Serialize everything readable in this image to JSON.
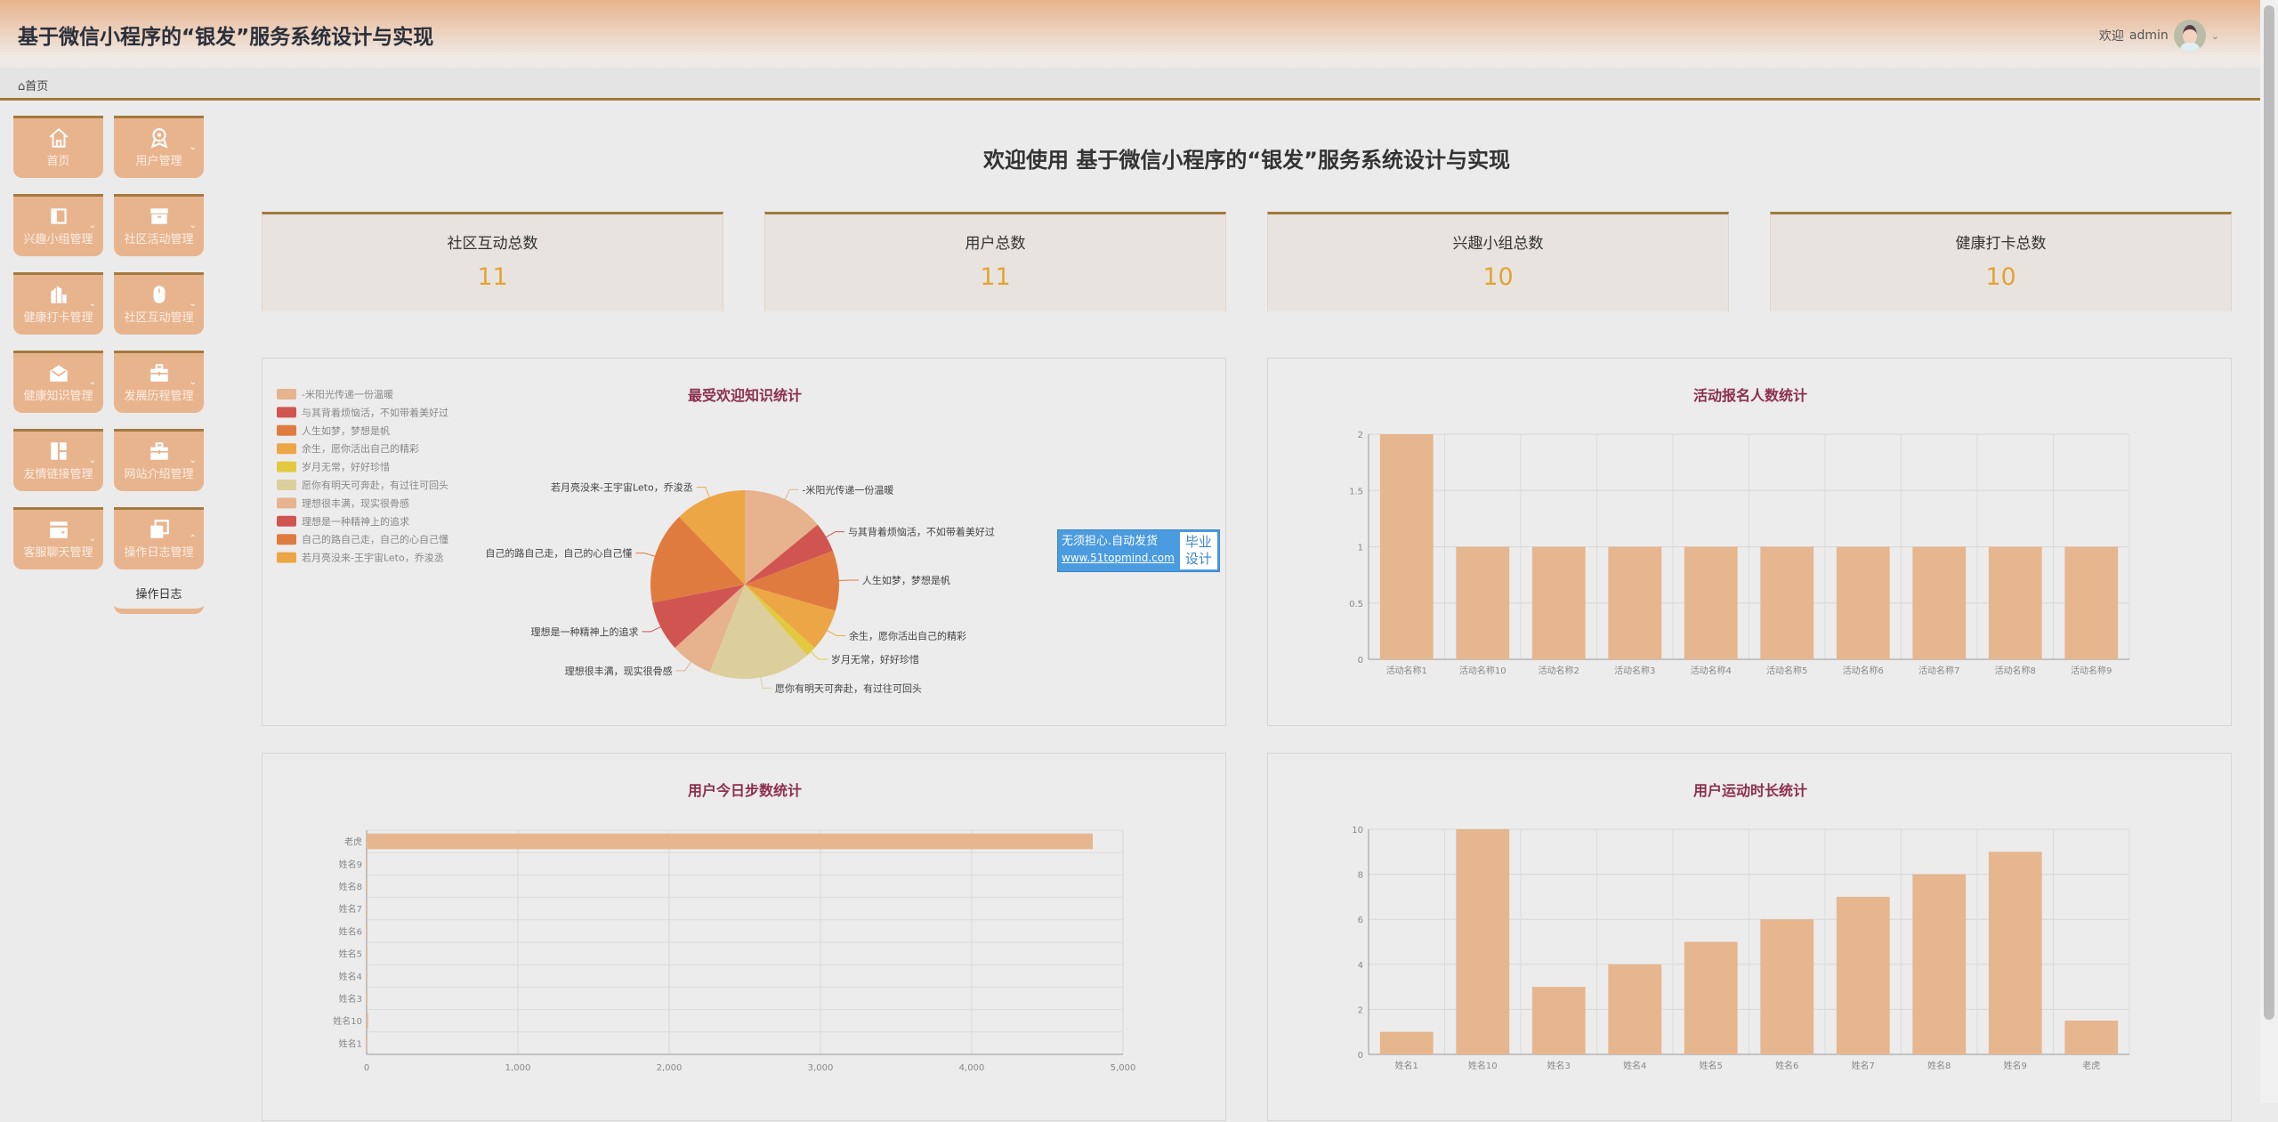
{
  "header": {
    "title": "基于微信小程序的“银发”服务系统设计与实现",
    "welcome": "欢迎",
    "username": "admin"
  },
  "breadcrumb": {
    "home": "首页"
  },
  "sidebar": {
    "items": [
      {
        "label": "首页",
        "icon": "home-icon"
      },
      {
        "label": "用户管理",
        "icon": "user-icon"
      },
      {
        "label": "兴趣小组管理",
        "icon": "square-icon"
      },
      {
        "label": "社区活动管理",
        "icon": "archive-icon"
      },
      {
        "label": "健康打卡管理",
        "icon": "building-icon"
      },
      {
        "label": "社区互动管理",
        "icon": "mouse-icon"
      },
      {
        "label": "健康知识管理",
        "icon": "mail-open-icon"
      },
      {
        "label": "发展历程管理",
        "icon": "toolbox-icon"
      },
      {
        "label": "友情链接管理",
        "icon": "layout-icon"
      },
      {
        "label": "网站介绍管理",
        "icon": "toolbox-icon"
      },
      {
        "label": "客服聊天管理",
        "icon": "wallet-icon"
      },
      {
        "label": "操作日志管理",
        "icon": "copy-icon"
      }
    ],
    "submenu": [
      "操作日志"
    ]
  },
  "main": {
    "welcome_title": "欢迎使用 基于微信小程序的“银发”服务系统设计与实现",
    "stats": [
      {
        "label": "社区互动总数",
        "value": "11"
      },
      {
        "label": "用户总数",
        "value": "11"
      },
      {
        "label": "兴趣小组总数",
        "value": "10"
      },
      {
        "label": "健康打卡总数",
        "value": "10"
      }
    ]
  },
  "ad": {
    "line1": "无须担心.自动发货",
    "line2": "www.51topmind.com",
    "badge1": "毕业",
    "badge2": "设计"
  },
  "colors": {
    "bar": "#e6b68f",
    "title": "#8c2f4d",
    "value": "#e3a434",
    "accent": "#a07a3e"
  },
  "chart_data": [
    {
      "type": "pie",
      "title": "最受欢迎知识统计",
      "legend": "top-left",
      "labels": [
        "-米阳光传递一份温暖",
        "与其背着烦恼活，不如带着美好过",
        "人生如梦，梦想是帆",
        "余生，愿你活出自己的精彩",
        "岁月无常，好好珍惜",
        "愿你有明天可奔赴，有过往可回头",
        "理想很丰满，现实很骨感",
        "理想是一种精神上的追求",
        "自己的路自己走，自己的心自己懂",
        "若月亮没来-王宇宙Leto，乔浚丞"
      ],
      "values": [
        14,
        5.1,
        10.3,
        7.2,
        1.8,
        17.5,
        7.2,
        8.6,
        15.8,
        12.2
      ],
      "colors": [
        "#e6b38e",
        "#d05550",
        "#e07b40",
        "#eda645",
        "#e3c93f",
        "#dccf9c",
        "#e6b38e",
        "#d05550",
        "#e07b40",
        "#eda645"
      ]
    },
    {
      "type": "bar",
      "title": "活动报名人数统计",
      "categories": [
        "活动名称1",
        "活动名称10",
        "活动名称2",
        "活动名称3",
        "活动名称4",
        "活动名称5",
        "活动名称6",
        "活动名称7",
        "活动名称8",
        "活动名称9"
      ],
      "values": [
        2,
        1,
        1,
        1,
        1,
        1,
        1,
        1,
        1,
        1
      ],
      "ylim": [
        0,
        2
      ],
      "yticks": [
        "0",
        "0.5",
        "1",
        "1.5",
        "2"
      ]
    },
    {
      "type": "bar",
      "orientation": "horizontal",
      "title": "用户今日步数统计",
      "categories": [
        "姓名1",
        "姓名10",
        "姓名3",
        "姓名4",
        "姓名5",
        "姓名6",
        "姓名7",
        "姓名8",
        "姓名9",
        "老虎"
      ],
      "values": [
        0,
        10,
        0,
        0,
        0,
        0,
        0,
        0,
        5,
        4800
      ],
      "xlim": [
        0,
        5000
      ],
      "xticks": [
        "0",
        "1,000",
        "2,000",
        "3,000",
        "4,000",
        "5,000"
      ]
    },
    {
      "type": "bar",
      "title": "用户运动时长统计",
      "categories": [
        "姓名1",
        "姓名10",
        "姓名3",
        "姓名4",
        "姓名5",
        "姓名6",
        "姓名7",
        "姓名8",
        "姓名9",
        "老虎"
      ],
      "values": [
        1,
        10,
        3,
        4,
        5,
        6,
        7,
        8,
        9,
        1.5
      ],
      "ylim": [
        0,
        10
      ],
      "yticks": [
        "0",
        "2",
        "4",
        "6",
        "8",
        "10"
      ]
    }
  ]
}
